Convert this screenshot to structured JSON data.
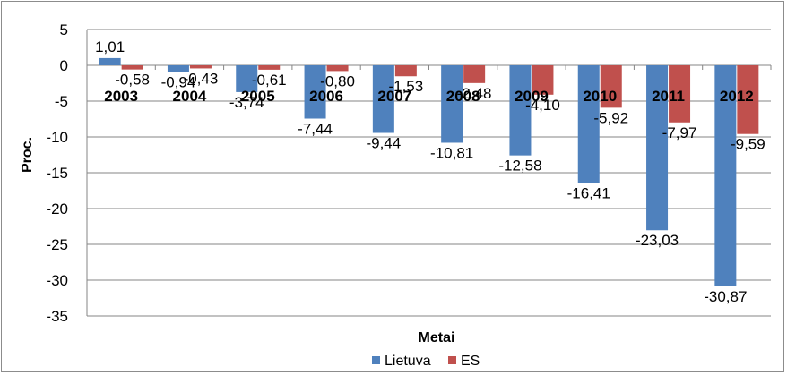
{
  "chart_data": {
    "type": "bar",
    "title": "",
    "xlabel": "Metai",
    "ylabel": "Proc.",
    "ylim": [
      -35,
      5
    ],
    "yticks": [
      5,
      0,
      -5,
      -10,
      -15,
      -20,
      -25,
      -30,
      -35
    ],
    "ytick_labels": [
      "5",
      "0",
      "-5",
      "-10",
      "-15",
      "-20",
      "-25",
      "-30",
      "-35"
    ],
    "grid": true,
    "legend_position": "bottom",
    "categories": [
      "2003",
      "2004",
      "2005",
      "2006",
      "2007",
      "2008",
      "2009",
      "2010",
      "2011",
      "2012"
    ],
    "series": [
      {
        "name": "Lietuva",
        "color": "#4f81bd",
        "values": [
          1.01,
          -0.94,
          -3.74,
          -7.44,
          -9.44,
          -10.81,
          -12.58,
          -16.41,
          -23.03,
          -30.87
        ],
        "labels": [
          "1,01",
          "-0,94",
          "-3,74",
          "-7,44",
          "-9,44",
          "-10,81",
          "-12,58",
          "-16,41",
          "-23,03",
          "-30,87"
        ]
      },
      {
        "name": "ES",
        "color": "#c0504d",
        "values": [
          -0.58,
          -0.43,
          -0.61,
          -0.8,
          -1.53,
          -2.48,
          -4.1,
          -5.92,
          -7.97,
          -9.59
        ],
        "labels": [
          "-0,58",
          "-0,43",
          "-0,61",
          "-0,80",
          "-1,53",
          "-2,48",
          "-4,10",
          "-5,92",
          "-7,97",
          "-9,59"
        ]
      }
    ]
  }
}
